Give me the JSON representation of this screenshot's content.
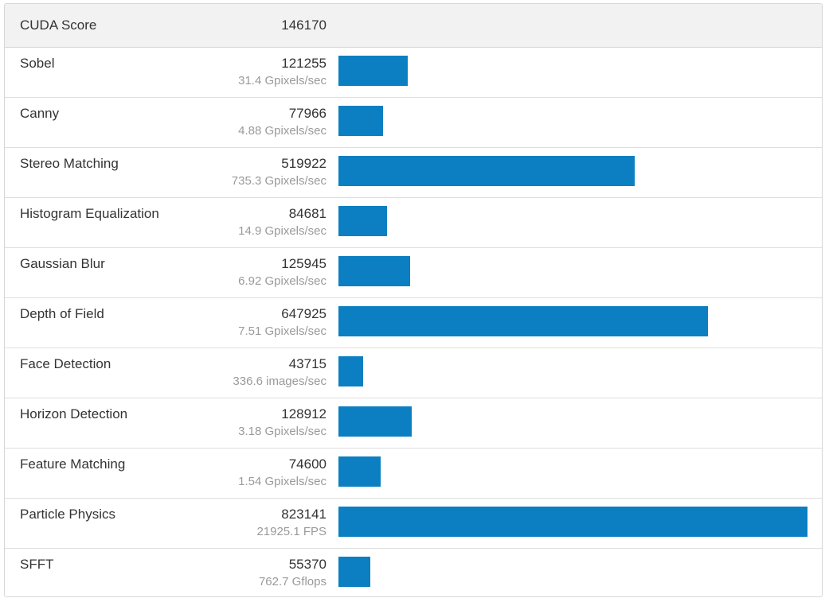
{
  "header": {
    "label": "CUDA Score",
    "score": "146170"
  },
  "chart_data": {
    "type": "bar",
    "orientation": "horizontal",
    "title": "CUDA Score",
    "overall_score": 146170,
    "categories": [
      "Sobel",
      "Canny",
      "Stereo Matching",
      "Histogram Equalization",
      "Gaussian Blur",
      "Depth of Field",
      "Face Detection",
      "Horizon Detection",
      "Feature Matching",
      "Particle Physics",
      "SFFT"
    ],
    "values": [
      121255,
      77966,
      519922,
      84681,
      125945,
      647925,
      43715,
      128912,
      74600,
      823141,
      55370
    ],
    "xlim": [
      0,
      823141
    ],
    "bar_color": "#0b7fc1"
  },
  "rows": [
    {
      "name": "Sobel",
      "score": "121255",
      "rate": "31.4 Gpixels/sec"
    },
    {
      "name": "Canny",
      "score": "77966",
      "rate": "4.88 Gpixels/sec"
    },
    {
      "name": "Stereo Matching",
      "score": "519922",
      "rate": "735.3 Gpixels/sec"
    },
    {
      "name": "Histogram Equalization",
      "score": "84681",
      "rate": "14.9 Gpixels/sec"
    },
    {
      "name": "Gaussian Blur",
      "score": "125945",
      "rate": "6.92 Gpixels/sec"
    },
    {
      "name": "Depth of Field",
      "score": "647925",
      "rate": "7.51 Gpixels/sec"
    },
    {
      "name": "Face Detection",
      "score": "43715",
      "rate": "336.6 images/sec"
    },
    {
      "name": "Horizon Detection",
      "score": "128912",
      "rate": "3.18 Gpixels/sec"
    },
    {
      "name": "Feature Matching",
      "score": "74600",
      "rate": "1.54 Gpixels/sec"
    },
    {
      "name": "Particle Physics",
      "score": "823141",
      "rate": "21925.1 FPS"
    },
    {
      "name": "SFFT",
      "score": "55370",
      "rate": "762.7 Gflops"
    }
  ]
}
